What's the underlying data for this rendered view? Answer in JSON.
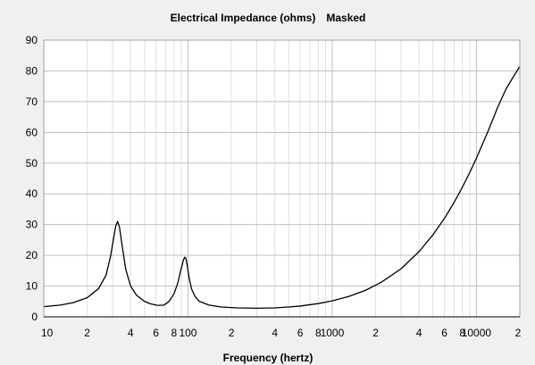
{
  "chart_data": {
    "type": "line",
    "title": "Electrical Impedance (ohms)",
    "title_suffix": "Masked",
    "xlabel": "Frequency (hertz)",
    "ylabel": "",
    "x_scale": "log",
    "xlim": [
      10,
      20000
    ],
    "ylim": [
      0,
      90
    ],
    "y_ticks": [
      0,
      10,
      20,
      30,
      40,
      50,
      60,
      70,
      80,
      90
    ],
    "x_ticks": [
      {
        "value": 10,
        "label": "10"
      },
      {
        "value": 20,
        "label": "2"
      },
      {
        "value": 40,
        "label": "4"
      },
      {
        "value": 60,
        "label": "6"
      },
      {
        "value": 80,
        "label": "8"
      },
      {
        "value": 100,
        "label": "100"
      },
      {
        "value": 200,
        "label": "2"
      },
      {
        "value": 400,
        "label": "4"
      },
      {
        "value": 600,
        "label": "6"
      },
      {
        "value": 800,
        "label": "8"
      },
      {
        "value": 1000,
        "label": "1000"
      },
      {
        "value": 2000,
        "label": "2"
      },
      {
        "value": 4000,
        "label": "4"
      },
      {
        "value": 6000,
        "label": "6"
      },
      {
        "value": 8000,
        "label": "8"
      },
      {
        "value": 10000,
        "label": "10000"
      },
      {
        "value": 20000,
        "label": "2"
      }
    ],
    "grid": true,
    "line_color": "#000000",
    "background_color": "#ffffff",
    "series": [
      {
        "x": [
          10,
          13,
          16,
          20,
          24,
          27,
          29,
          30.5,
          31.5,
          32.5,
          33.5,
          35,
          37,
          40,
          44,
          50,
          55,
          62,
          68,
          74,
          80,
          85,
          89,
          93,
          95,
          97,
          99,
          102,
          106,
          112,
          120,
          140,
          170,
          220,
          300,
          400,
          500,
          600,
          800,
          1000,
          1300,
          1700,
          2200,
          3000,
          4000,
          5000,
          6000,
          7000,
          8000,
          9000,
          10000,
          12000,
          14000,
          16000,
          18000,
          20000
        ],
        "y": [
          3.3,
          3.8,
          4.6,
          6.2,
          9.2,
          13.5,
          19.5,
          25.5,
          29.5,
          31.0,
          29.2,
          23.0,
          15.5,
          10.0,
          7.0,
          5.0,
          4.2,
          3.7,
          3.8,
          5.0,
          7.5,
          11.0,
          15.0,
          18.5,
          19.4,
          18.8,
          16.5,
          12.5,
          9.0,
          6.6,
          5.0,
          3.8,
          3.2,
          2.9,
          2.8,
          2.9,
          3.2,
          3.5,
          4.3,
          5.2,
          6.6,
          8.6,
          11.3,
          15.6,
          21.2,
          26.7,
          32.0,
          37.2,
          42.2,
          47.0,
          51.6,
          60.2,
          68.0,
          74.0,
          78.0,
          81.5
        ]
      }
    ]
  }
}
